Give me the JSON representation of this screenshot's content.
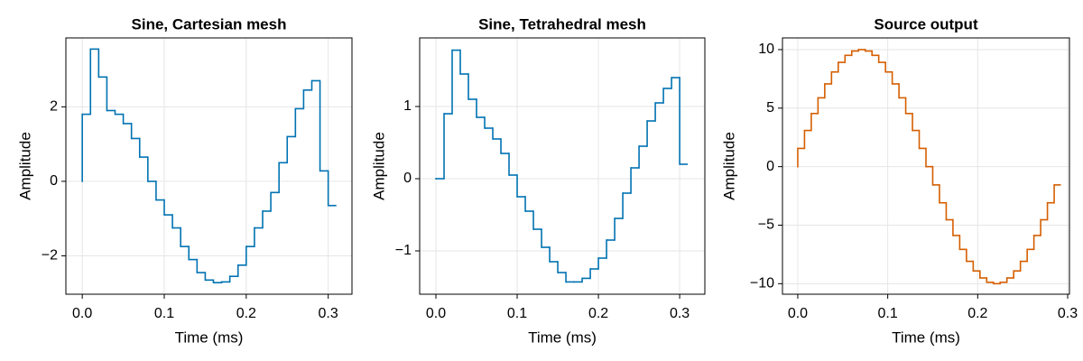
{
  "chart_data": [
    {
      "type": "line",
      "step": "pre",
      "title": "Sine, Cartesian mesh",
      "xlabel": "Time (ms)",
      "ylabel": "Amplitude",
      "grid": true,
      "xlim": [
        -0.02,
        0.329
      ],
      "ylim": [
        -3.03,
        3.85
      ],
      "xticks": [
        {
          "value": 0,
          "label": "0.0"
        },
        0.1,
        0.2,
        0.3
      ],
      "yticks": [
        {
          "value": -2,
          "label": "−2"
        },
        0,
        2
      ],
      "x": [
        0,
        0.01,
        0.02,
        0.03,
        0.04,
        0.05,
        0.06,
        0.07,
        0.08,
        0.09,
        0.1,
        0.11,
        0.12,
        0.13,
        0.14,
        0.15,
        0.16,
        0.17,
        0.18,
        0.19,
        0.2,
        0.21,
        0.22,
        0.23,
        0.24,
        0.25,
        0.26,
        0.27,
        0.28,
        0.29,
        0.3,
        0.31
      ],
      "series": [
        {
          "color": "#0072b2",
          "values": [
            0,
            1.8,
            3.55,
            2.8,
            1.9,
            1.8,
            1.55,
            1.15,
            0.65,
            0.0,
            -0.5,
            -0.9,
            -1.25,
            -1.75,
            -2.1,
            -2.45,
            -2.65,
            -2.72,
            -2.7,
            -2.55,
            -2.25,
            -1.75,
            -1.25,
            -0.8,
            -0.3,
            0.5,
            1.2,
            1.95,
            2.45,
            2.7,
            0.28,
            -0.65
          ]
        }
      ]
    },
    {
      "type": "line",
      "step": "pre",
      "title": "Sine, Tetrahedral mesh",
      "xlabel": "Time (ms)",
      "ylabel": "Amplitude",
      "grid": true,
      "xlim": [
        -0.02,
        0.331
      ],
      "ylim": [
        -1.6,
        1.95
      ],
      "xticks": [
        {
          "value": 0,
          "label": "0.0"
        },
        0.1,
        0.2,
        0.3
      ],
      "yticks": [
        {
          "value": -1,
          "label": "−1"
        },
        0,
        1
      ],
      "x": [
        0,
        0.01,
        0.02,
        0.03,
        0.04,
        0.05,
        0.06,
        0.07,
        0.08,
        0.09,
        0.1,
        0.11,
        0.12,
        0.13,
        0.14,
        0.15,
        0.16,
        0.17,
        0.18,
        0.19,
        0.2,
        0.21,
        0.22,
        0.23,
        0.24,
        0.25,
        0.26,
        0.27,
        0.28,
        0.29,
        0.3,
        0.31
      ],
      "series": [
        {
          "color": "#0072b2",
          "values": [
            0,
            0,
            0.9,
            1.78,
            1.45,
            1.1,
            0.85,
            0.7,
            0.55,
            0.35,
            0.05,
            -0.25,
            -0.45,
            -0.7,
            -0.95,
            -1.15,
            -1.3,
            -1.43,
            -1.43,
            -1.38,
            -1.25,
            -1.1,
            -0.85,
            -0.55,
            -0.2,
            0.15,
            0.45,
            0.8,
            1.05,
            1.25,
            1.4,
            0.2
          ]
        }
      ]
    },
    {
      "type": "line",
      "step": "pre",
      "title": "Source output",
      "xlabel": "Time (ms)",
      "ylabel": "Amplitude",
      "grid": true,
      "xlim": [
        -0.017,
        0.302
      ],
      "ylim": [
        -10.9,
        11
      ],
      "xticks": [
        {
          "value": 0,
          "label": "0.0"
        },
        0.1,
        0.2,
        0.3
      ],
      "yticks": [
        {
          "value": -10,
          "label": "−10"
        },
        {
          "value": -5,
          "label": "−5"
        },
        0,
        5,
        10
      ],
      "x": [
        0,
        0.0075,
        0.015,
        0.0225,
        0.03,
        0.0375,
        0.045,
        0.0525,
        0.06,
        0.0675,
        0.075,
        0.0825,
        0.09,
        0.0975,
        0.105,
        0.1125,
        0.12,
        0.1275,
        0.135,
        0.1425,
        0.15,
        0.1575,
        0.165,
        0.1725,
        0.18,
        0.1875,
        0.195,
        0.2025,
        0.21,
        0.2175,
        0.225,
        0.2325,
        0.24,
        0.2475,
        0.255,
        0.2625,
        0.27,
        0.2775,
        0.285,
        0.2925
      ],
      "series": [
        {
          "color": "#d55e00",
          "values": [
            0,
            1.56,
            3.09,
            4.54,
            5.88,
            7.07,
            8.09,
            8.91,
            9.51,
            9.88,
            10,
            9.88,
            9.51,
            8.91,
            8.09,
            7.07,
            5.88,
            4.54,
            3.09,
            1.56,
            0,
            -1.56,
            -3.09,
            -4.54,
            -5.88,
            -7.07,
            -8.09,
            -8.91,
            -9.51,
            -9.88,
            -10,
            -9.88,
            -9.51,
            -8.91,
            -8.09,
            -7.07,
            -5.88,
            -4.54,
            -3.09,
            -1.56
          ]
        }
      ]
    }
  ]
}
